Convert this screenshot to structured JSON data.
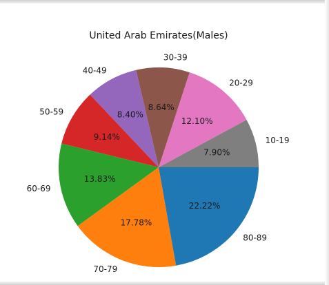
{
  "chart_data": {
    "type": "pie",
    "title": "United Arab Emirates(Males)",
    "categories": [
      "10-19",
      "20-29",
      "30-39",
      "40-49",
      "50-59",
      "60-69",
      "70-79",
      "80-89"
    ],
    "values": [
      7.9,
      12.1,
      8.64,
      8.4,
      9.14,
      13.83,
      17.78,
      22.22
    ],
    "value_labels": [
      "7.90%",
      "12.10%",
      "8.64%",
      "8.40%",
      "9.14%",
      "13.83%",
      "17.78%",
      "22.22%"
    ],
    "colors": [
      "#7f7f7f",
      "#e377c2",
      "#8c564b",
      "#9467bd",
      "#d62728",
      "#2ca02c",
      "#ff7f0e",
      "#1f77b4"
    ],
    "legend": "none"
  }
}
